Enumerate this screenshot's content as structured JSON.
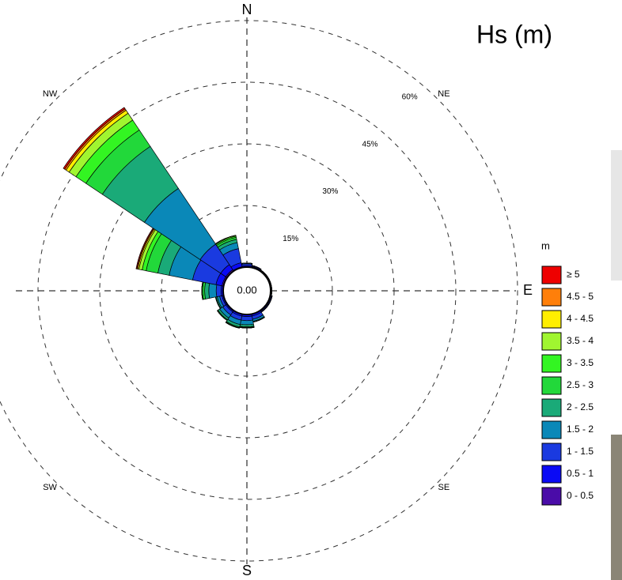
{
  "chart_data": {
    "type": "rose",
    "title": "Hs (m)",
    "legend_title": "m",
    "center_label": "0.00",
    "categories": [
      "N",
      null,
      "NE",
      null,
      "E",
      null,
      "SE",
      null,
      "S",
      null,
      "SW",
      null,
      null,
      null,
      "NW",
      null
    ],
    "rlim": [
      0,
      60
    ],
    "rticks": [
      {
        "value": 15,
        "label": "15%"
      },
      {
        "value": 30,
        "label": "30%"
      },
      {
        "value": 45,
        "label": "45%"
      },
      {
        "value": 60,
        "label": "60%"
      }
    ],
    "grid": true,
    "legend": "right",
    "series": [
      {
        "name": "0 - 0.5",
        "color": "#4a0ca8",
        "values": [
          0.1,
          0.1,
          0.1,
          0.1,
          0.1,
          0.1,
          0.1,
          0.1,
          0.1,
          0.1,
          0.1,
          0.1,
          0.1,
          0.4,
          0.4,
          0.2
        ]
      },
      {
        "name": "0.5 - 1",
        "color": "#0a0af5",
        "values": [
          0.3,
          0.2,
          0.1,
          0.1,
          0.1,
          0.2,
          0.2,
          0.4,
          0.4,
          0.4,
          0.3,
          0.3,
          0.4,
          1.5,
          1.5,
          1.0
        ]
      },
      {
        "name": "1 - 1.5",
        "color": "#1a3ae0",
        "values": [
          0.4,
          0.2,
          0.1,
          0.1,
          0.1,
          0.2,
          0.2,
          0.8,
          1.0,
          1.0,
          0.9,
          0.6,
          1.2,
          5.8,
          6.0,
          3.5
        ]
      },
      {
        "name": "1.5 - 2",
        "color": "#0a88b8",
        "values": [
          0.2,
          0,
          0,
          0,
          0,
          0,
          0,
          0.5,
          1.0,
          1.1,
          0.9,
          0.6,
          1.8,
          5.8,
          16.3,
          1.5
        ]
      },
      {
        "name": "2 - 2.5",
        "color": "#1aaa78",
        "values": [
          0,
          0,
          0,
          0,
          0,
          0,
          0,
          0.2,
          0.5,
          0.6,
          0.5,
          0.3,
          1.0,
          2.8,
          12.3,
          0.8
        ]
      },
      {
        "name": "2.5 - 3",
        "color": "#22d83a",
        "values": [
          0,
          0,
          0,
          0,
          0,
          0,
          0,
          0,
          0.2,
          0.2,
          0.2,
          0.1,
          0.5,
          2.9,
          4.8,
          0.5
        ]
      },
      {
        "name": "3 - 3.5",
        "color": "#33f522",
        "values": [
          0,
          0,
          0,
          0,
          0,
          0,
          0,
          0,
          0.1,
          0.1,
          0,
          0,
          0.2,
          1.0,
          2.9,
          0.3
        ]
      },
      {
        "name": "3.5 - 4",
        "color": "#a0f530",
        "values": [
          0,
          0,
          0,
          0,
          0,
          0,
          0,
          0,
          0,
          0,
          0,
          0,
          0,
          0.8,
          2.0,
          0.2
        ]
      },
      {
        "name": "4 - 4.5",
        "color": "#ffee00",
        "values": [
          0,
          0,
          0,
          0,
          0,
          0,
          0,
          0,
          0,
          0,
          0,
          0,
          0,
          0.3,
          0.9,
          0
        ]
      },
      {
        "name": "4.5 - 5",
        "color": "#ff7f0a",
        "values": [
          0,
          0,
          0,
          0,
          0,
          0,
          0,
          0,
          0,
          0,
          0,
          0,
          0,
          0.2,
          0.4,
          0
        ]
      },
      {
        "name": "≥ 5",
        "color": "#ee0000",
        "values": [
          0,
          0,
          0,
          0,
          0,
          0,
          0,
          0,
          0,
          0,
          0,
          0,
          0,
          0.2,
          0.4,
          0
        ]
      }
    ]
  }
}
